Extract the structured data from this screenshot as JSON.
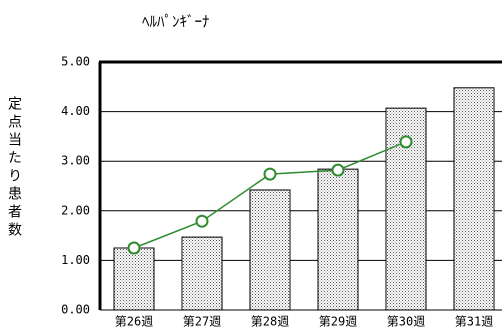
{
  "chart_data": {
    "type": "bar",
    "title": "ﾍﾙﾊﾟﾝｷﾞｰﾅ",
    "y_label": "定点当たり患者数",
    "categories": [
      "第26週",
      "第27週",
      "第28週",
      "第29週",
      "第30週",
      "第31週"
    ],
    "series": [
      {
        "type": "bar",
        "color": "#b0b0b0",
        "values": [
          1.25,
          1.47,
          2.42,
          2.84,
          4.07,
          4.48
        ]
      },
      {
        "type": "line",
        "color": "#2e8b2e",
        "values": [
          1.25,
          1.79,
          2.74,
          2.82,
          3.39,
          null
        ]
      }
    ],
    "ylim": [
      0,
      5
    ],
    "yticks": [
      {
        "value": 0,
        "label": "0.00"
      },
      {
        "value": 1,
        "label": "1.00"
      },
      {
        "value": 2,
        "label": "2.00"
      },
      {
        "value": 3,
        "label": "3.00"
      },
      {
        "value": 4,
        "label": "4.00"
      },
      {
        "value": 5,
        "label": "5.00"
      }
    ],
    "grid": true
  }
}
